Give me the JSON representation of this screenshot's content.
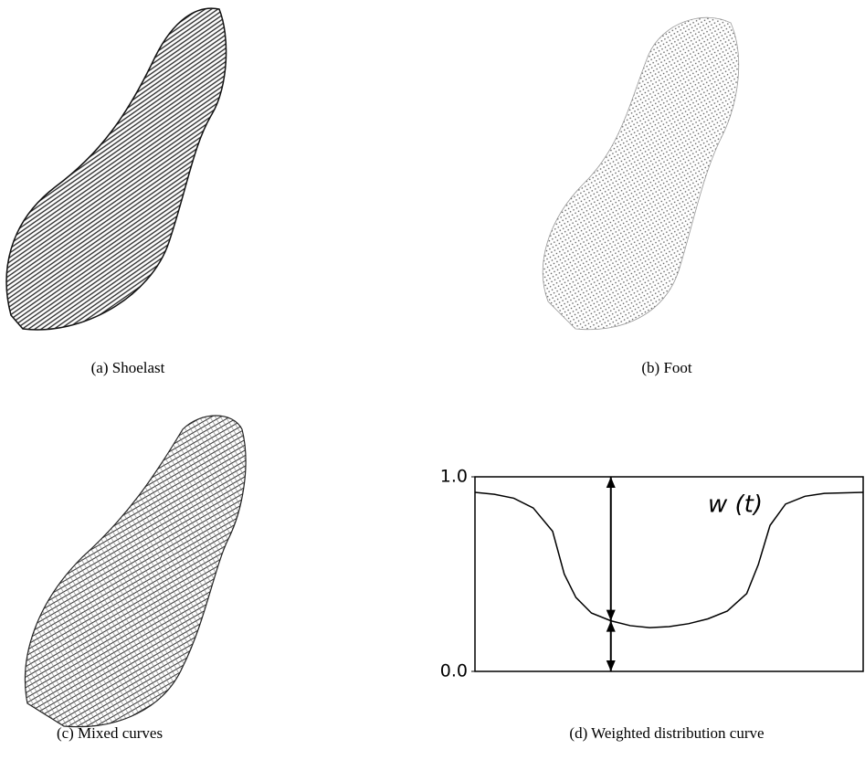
{
  "panels": [
    {
      "caption": "(a)  Shoelast"
    },
    {
      "caption": "(b)  Foot"
    },
    {
      "caption": "(c)  Mixed curves"
    },
    {
      "caption": "(d)  Weighted distribution curve"
    }
  ],
  "chart_data": {
    "type": "line",
    "annotation": "w (t)",
    "x": [
      0,
      0.05,
      0.1,
      0.15,
      0.2,
      0.23,
      0.26,
      0.3,
      0.35,
      0.4,
      0.45,
      0.5,
      0.55,
      0.6,
      0.65,
      0.7,
      0.73,
      0.76,
      0.8,
      0.85,
      0.9,
      1
    ],
    "values": [
      0.92,
      0.91,
      0.89,
      0.84,
      0.72,
      0.5,
      0.38,
      0.3,
      0.26,
      0.235,
      0.225,
      0.23,
      0.245,
      0.27,
      0.31,
      0.4,
      0.55,
      0.75,
      0.86,
      0.9,
      0.915,
      0.92
    ],
    "color": "#000000",
    "xlim": [
      0,
      1
    ],
    "ylim": [
      0,
      1
    ],
    "yticks": [
      {
        "value": 0,
        "label": "0.0"
      },
      {
        "value": 1,
        "label": "1.0"
      }
    ]
  }
}
